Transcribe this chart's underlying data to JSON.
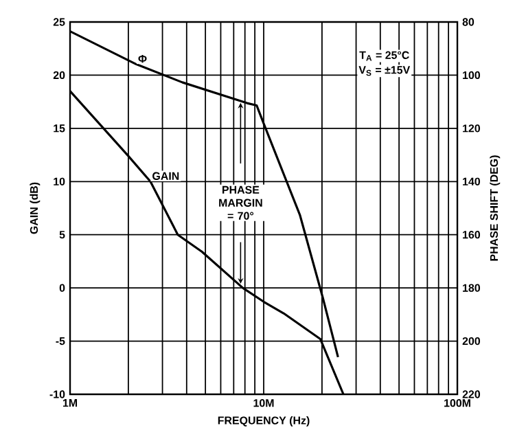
{
  "chart_data": {
    "type": "line",
    "xlabel": "FREQUENCY (Hz)",
    "ylabel": "GAIN (dB)",
    "y2label": "PHASE SHIFT (DEG)",
    "log": "x",
    "grid": true,
    "xlim": [
      1000000,
      100000000
    ],
    "xticks": [
      {
        "value": 1000000,
        "label": "1M"
      },
      {
        "value": 10000000,
        "label": "10M"
      },
      {
        "value": 100000000,
        "label": "100M"
      }
    ],
    "ylim": [
      -10,
      25
    ],
    "yticks": [
      -10,
      -5,
      0,
      5,
      10,
      15,
      20,
      25
    ],
    "y2lim": [
      220,
      80
    ],
    "y2ticks": [
      80,
      100,
      120,
      140,
      160,
      180,
      200,
      220
    ],
    "series": [
      {
        "name": "GAIN",
        "color": "#000000",
        "x": [
          1000000,
          2000000,
          2600000,
          3600000,
          4800000,
          7800000,
          10000000,
          12700000,
          19600000,
          25800000
        ],
        "values": [
          18.5,
          12.4,
          10,
          5,
          3.4,
          0,
          -1.3,
          -2.4,
          -4.8,
          -10
        ]
      },
      {
        "name": "Φ",
        "color": "#000000",
        "axis": "y2",
        "x": [
          1000000,
          2200000,
          3800000,
          8200000,
          9200000,
          10000000,
          15400000,
          20200000,
          24200000
        ],
        "values": [
          83.5,
          95.9,
          102.7,
          110.5,
          111.4,
          118.2,
          152.7,
          183.7,
          206
        ]
      }
    ],
    "annotations": [
      "T$_{A}$ = 25°C",
      "V$_{S}$ = ±15V",
      "PHASE MARGIN = 70°"
    ]
  }
}
